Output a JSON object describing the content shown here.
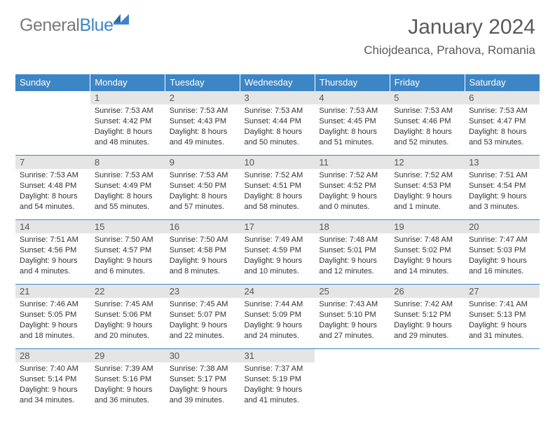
{
  "brand": {
    "part1": "General",
    "part2": "Blue"
  },
  "header": {
    "title": "January 2024",
    "location": "Chiojdeanca, Prahova, Romania"
  },
  "colors": {
    "header_bar": "#3d86c6",
    "daynum_bg": "#e5e5e5",
    "row_divider": "#3d86c6",
    "logo_gray": "#7a7a7a",
    "logo_blue": "#3d86c6",
    "text": "#333333",
    "title_text": "#5a5a5a"
  },
  "weekdays": [
    "Sunday",
    "Monday",
    "Tuesday",
    "Wednesday",
    "Thursday",
    "Friday",
    "Saturday"
  ],
  "weeks": [
    [
      {
        "empty": true
      },
      {
        "day": "1",
        "sunrise": "Sunrise: 7:53 AM",
        "sunset": "Sunset: 4:42 PM",
        "daylight1": "Daylight: 8 hours",
        "daylight2": "and 48 minutes."
      },
      {
        "day": "2",
        "sunrise": "Sunrise: 7:53 AM",
        "sunset": "Sunset: 4:43 PM",
        "daylight1": "Daylight: 8 hours",
        "daylight2": "and 49 minutes."
      },
      {
        "day": "3",
        "sunrise": "Sunrise: 7:53 AM",
        "sunset": "Sunset: 4:44 PM",
        "daylight1": "Daylight: 8 hours",
        "daylight2": "and 50 minutes."
      },
      {
        "day": "4",
        "sunrise": "Sunrise: 7:53 AM",
        "sunset": "Sunset: 4:45 PM",
        "daylight1": "Daylight: 8 hours",
        "daylight2": "and 51 minutes."
      },
      {
        "day": "5",
        "sunrise": "Sunrise: 7:53 AM",
        "sunset": "Sunset: 4:46 PM",
        "daylight1": "Daylight: 8 hours",
        "daylight2": "and 52 minutes."
      },
      {
        "day": "6",
        "sunrise": "Sunrise: 7:53 AM",
        "sunset": "Sunset: 4:47 PM",
        "daylight1": "Daylight: 8 hours",
        "daylight2": "and 53 minutes."
      }
    ],
    [
      {
        "day": "7",
        "sunrise": "Sunrise: 7:53 AM",
        "sunset": "Sunset: 4:48 PM",
        "daylight1": "Daylight: 8 hours",
        "daylight2": "and 54 minutes."
      },
      {
        "day": "8",
        "sunrise": "Sunrise: 7:53 AM",
        "sunset": "Sunset: 4:49 PM",
        "daylight1": "Daylight: 8 hours",
        "daylight2": "and 55 minutes."
      },
      {
        "day": "9",
        "sunrise": "Sunrise: 7:53 AM",
        "sunset": "Sunset: 4:50 PM",
        "daylight1": "Daylight: 8 hours",
        "daylight2": "and 57 minutes."
      },
      {
        "day": "10",
        "sunrise": "Sunrise: 7:52 AM",
        "sunset": "Sunset: 4:51 PM",
        "daylight1": "Daylight: 8 hours",
        "daylight2": "and 58 minutes."
      },
      {
        "day": "11",
        "sunrise": "Sunrise: 7:52 AM",
        "sunset": "Sunset: 4:52 PM",
        "daylight1": "Daylight: 9 hours",
        "daylight2": "and 0 minutes."
      },
      {
        "day": "12",
        "sunrise": "Sunrise: 7:52 AM",
        "sunset": "Sunset: 4:53 PM",
        "daylight1": "Daylight: 9 hours",
        "daylight2": "and 1 minute."
      },
      {
        "day": "13",
        "sunrise": "Sunrise: 7:51 AM",
        "sunset": "Sunset: 4:54 PM",
        "daylight1": "Daylight: 9 hours",
        "daylight2": "and 3 minutes."
      }
    ],
    [
      {
        "day": "14",
        "sunrise": "Sunrise: 7:51 AM",
        "sunset": "Sunset: 4:56 PM",
        "daylight1": "Daylight: 9 hours",
        "daylight2": "and 4 minutes."
      },
      {
        "day": "15",
        "sunrise": "Sunrise: 7:50 AM",
        "sunset": "Sunset: 4:57 PM",
        "daylight1": "Daylight: 9 hours",
        "daylight2": "and 6 minutes."
      },
      {
        "day": "16",
        "sunrise": "Sunrise: 7:50 AM",
        "sunset": "Sunset: 4:58 PM",
        "daylight1": "Daylight: 9 hours",
        "daylight2": "and 8 minutes."
      },
      {
        "day": "17",
        "sunrise": "Sunrise: 7:49 AM",
        "sunset": "Sunset: 4:59 PM",
        "daylight1": "Daylight: 9 hours",
        "daylight2": "and 10 minutes."
      },
      {
        "day": "18",
        "sunrise": "Sunrise: 7:48 AM",
        "sunset": "Sunset: 5:01 PM",
        "daylight1": "Daylight: 9 hours",
        "daylight2": "and 12 minutes."
      },
      {
        "day": "19",
        "sunrise": "Sunrise: 7:48 AM",
        "sunset": "Sunset: 5:02 PM",
        "daylight1": "Daylight: 9 hours",
        "daylight2": "and 14 minutes."
      },
      {
        "day": "20",
        "sunrise": "Sunrise: 7:47 AM",
        "sunset": "Sunset: 5:03 PM",
        "daylight1": "Daylight: 9 hours",
        "daylight2": "and 16 minutes."
      }
    ],
    [
      {
        "day": "21",
        "sunrise": "Sunrise: 7:46 AM",
        "sunset": "Sunset: 5:05 PM",
        "daylight1": "Daylight: 9 hours",
        "daylight2": "and 18 minutes."
      },
      {
        "day": "22",
        "sunrise": "Sunrise: 7:45 AM",
        "sunset": "Sunset: 5:06 PM",
        "daylight1": "Daylight: 9 hours",
        "daylight2": "and 20 minutes."
      },
      {
        "day": "23",
        "sunrise": "Sunrise: 7:45 AM",
        "sunset": "Sunset: 5:07 PM",
        "daylight1": "Daylight: 9 hours",
        "daylight2": "and 22 minutes."
      },
      {
        "day": "24",
        "sunrise": "Sunrise: 7:44 AM",
        "sunset": "Sunset: 5:09 PM",
        "daylight1": "Daylight: 9 hours",
        "daylight2": "and 24 minutes."
      },
      {
        "day": "25",
        "sunrise": "Sunrise: 7:43 AM",
        "sunset": "Sunset: 5:10 PM",
        "daylight1": "Daylight: 9 hours",
        "daylight2": "and 27 minutes."
      },
      {
        "day": "26",
        "sunrise": "Sunrise: 7:42 AM",
        "sunset": "Sunset: 5:12 PM",
        "daylight1": "Daylight: 9 hours",
        "daylight2": "and 29 minutes."
      },
      {
        "day": "27",
        "sunrise": "Sunrise: 7:41 AM",
        "sunset": "Sunset: 5:13 PM",
        "daylight1": "Daylight: 9 hours",
        "daylight2": "and 31 minutes."
      }
    ],
    [
      {
        "day": "28",
        "sunrise": "Sunrise: 7:40 AM",
        "sunset": "Sunset: 5:14 PM",
        "daylight1": "Daylight: 9 hours",
        "daylight2": "and 34 minutes."
      },
      {
        "day": "29",
        "sunrise": "Sunrise: 7:39 AM",
        "sunset": "Sunset: 5:16 PM",
        "daylight1": "Daylight: 9 hours",
        "daylight2": "and 36 minutes."
      },
      {
        "day": "30",
        "sunrise": "Sunrise: 7:38 AM",
        "sunset": "Sunset: 5:17 PM",
        "daylight1": "Daylight: 9 hours",
        "daylight2": "and 39 minutes."
      },
      {
        "day": "31",
        "sunrise": "Sunrise: 7:37 AM",
        "sunset": "Sunset: 5:19 PM",
        "daylight1": "Daylight: 9 hours",
        "daylight2": "and 41 minutes."
      },
      {
        "empty": true
      },
      {
        "empty": true
      },
      {
        "empty": true
      }
    ]
  ]
}
